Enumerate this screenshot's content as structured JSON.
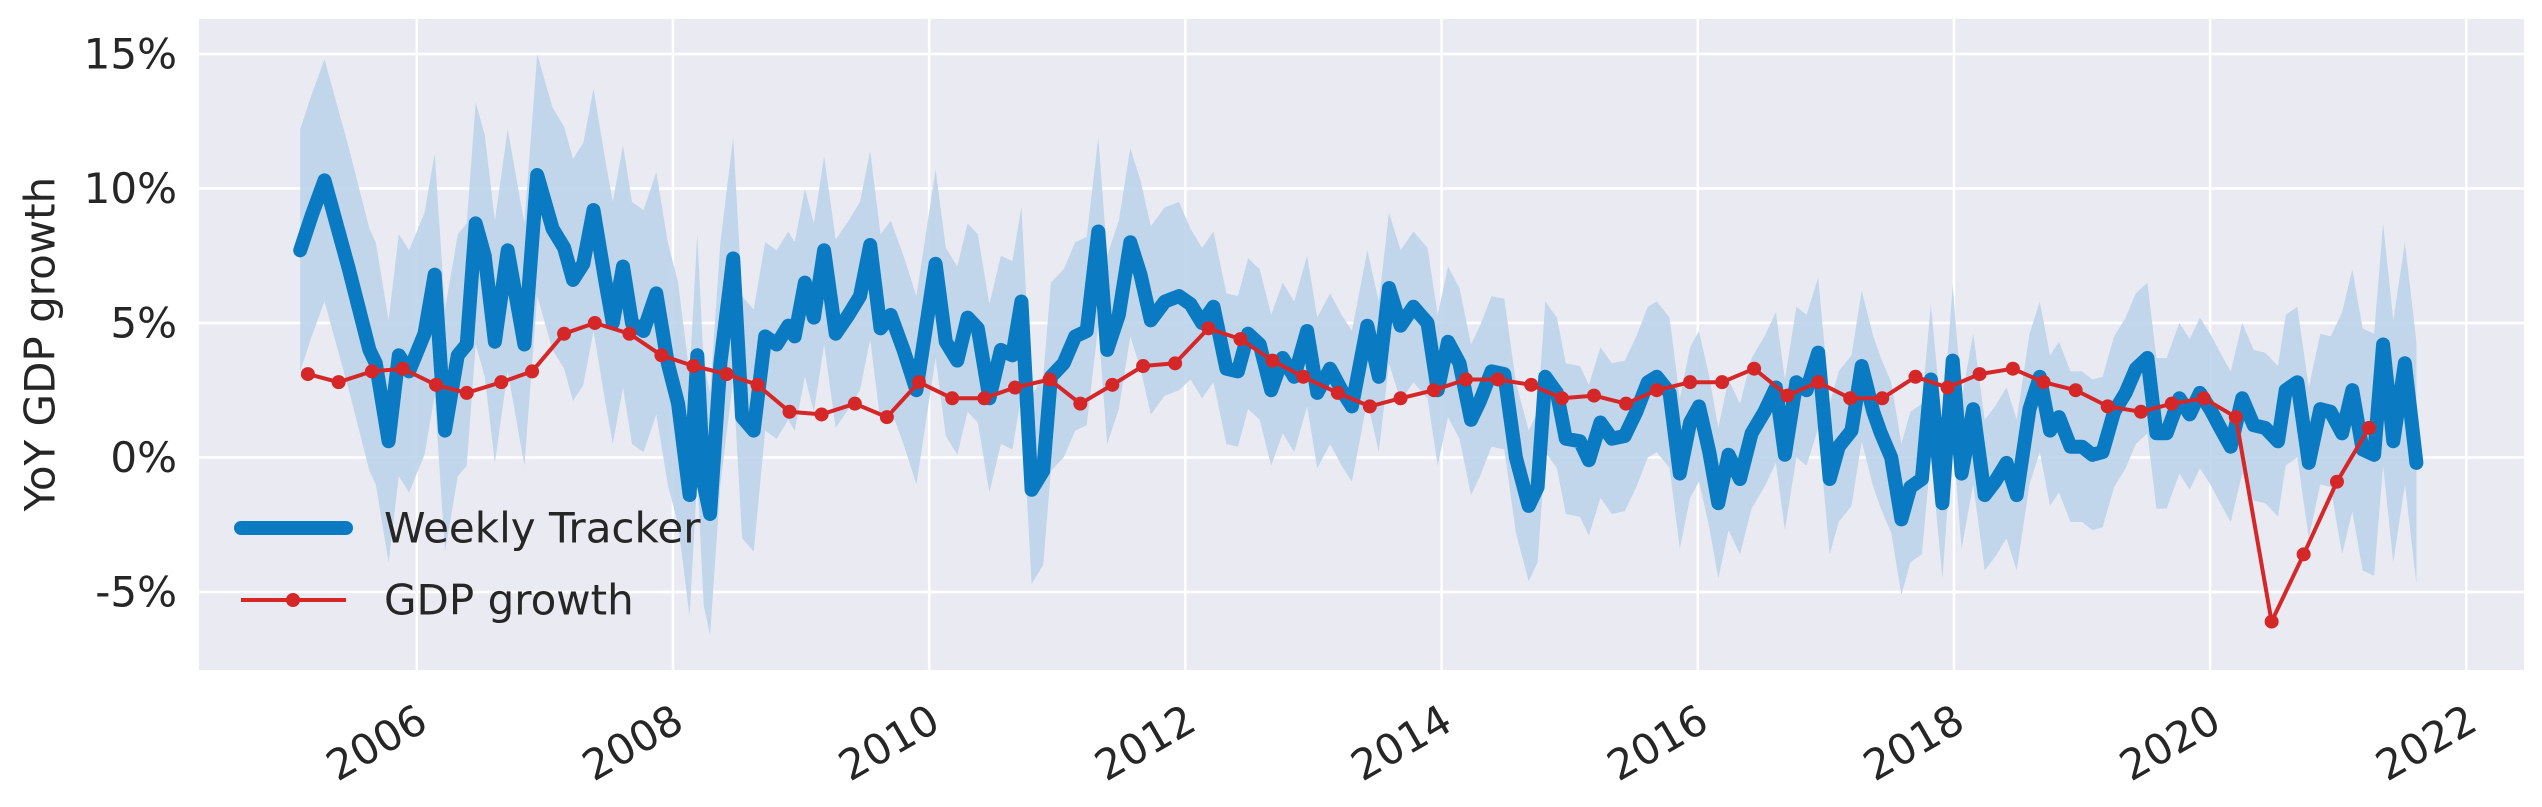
{
  "chart_data": {
    "type": "line",
    "y_label": "YoY GDP growth",
    "xlim": [
      2004.3,
      2022.45
    ],
    "xticks": [
      2006,
      2008,
      2010,
      2012,
      2014,
      2016,
      2018,
      2020,
      2022
    ],
    "ylim": [
      -7.9,
      16.3
    ],
    "yticks": [
      {
        "value": -5,
        "label": "-5%"
      },
      {
        "value": 0,
        "label": "0%"
      },
      {
        "value": 5,
        "label": "5%"
      },
      {
        "value": 10,
        "label": "10%"
      },
      {
        "value": 15,
        "label": "15%"
      }
    ],
    "grid": true,
    "legend": "lower left",
    "series": [
      {
        "name": "Weekly Tracker",
        "color": "#0a7bc2",
        "band_color": "#bcd4ea",
        "x": [
          2005.09,
          2005.18,
          2005.28,
          2005.47,
          2005.63,
          2005.68,
          2005.78,
          2005.86,
          2005.94,
          2006.06,
          2006.14,
          2006.22,
          2006.32,
          2006.39,
          2006.46,
          2006.53,
          2006.61,
          2006.71,
          2006.84,
          2006.94,
          2007.06,
          2007.15,
          2007.22,
          2007.3,
          2007.38,
          2007.47,
          2007.53,
          2007.61,
          2007.68,
          2007.77,
          2007.87,
          2007.96,
          2008.04,
          2008.13,
          2008.19,
          2008.24,
          2008.29,
          2008.37,
          2008.47,
          2008.54,
          2008.63,
          2008.72,
          2008.81,
          2008.9,
          2008.95,
          2009.03,
          2009.1,
          2009.18,
          2009.27,
          2009.37,
          2009.46,
          2009.54,
          2009.62,
          2009.7,
          2009.8,
          2009.9,
          2010.05,
          2010.13,
          2010.22,
          2010.3,
          2010.38,
          2010.47,
          2010.56,
          2010.65,
          2010.72,
          2010.8,
          2010.89,
          2010.95,
          2011.05,
          2011.14,
          2011.23,
          2011.32,
          2011.39,
          2011.48,
          2011.57,
          2011.65,
          2011.73,
          2011.84,
          2011.95,
          2012.04,
          2012.13,
          2012.22,
          2012.32,
          2012.41,
          2012.49,
          2012.58,
          2012.67,
          2012.76,
          2012.85,
          2012.95,
          2013.03,
          2013.13,
          2013.22,
          2013.3,
          2013.42,
          2013.51,
          2013.59,
          2013.68,
          2013.78,
          2013.89,
          2013.97,
          2014.05,
          2014.14,
          2014.23,
          2014.3,
          2014.39,
          2014.49,
          2014.58,
          2014.68,
          2014.75,
          2014.81,
          2014.9,
          2014.97,
          2015.08,
          2015.15,
          2015.24,
          2015.33,
          2015.43,
          2015.52,
          2015.61,
          2015.68,
          2015.78,
          2015.86,
          2015.94,
          2016.01,
          2016.09,
          2016.16,
          2016.24,
          2016.33,
          2016.42,
          2016.52,
          2016.61,
          2016.68,
          2016.77,
          2016.85,
          2016.94,
          2017.03,
          2017.1,
          2017.2,
          2017.28,
          2017.37,
          2017.43,
          2017.51,
          2017.59,
          2017.66,
          2017.75,
          2017.82,
          2017.91,
          2017.99,
          2018.06,
          2018.15,
          2018.24,
          2018.32,
          2018.41,
          2018.49,
          2018.59,
          2018.67,
          2018.75,
          2018.82,
          2018.91,
          2019.0,
          2019.08,
          2019.16,
          2019.25,
          2019.34,
          2019.42,
          2019.51,
          2019.58,
          2019.66,
          2019.76,
          2019.84,
          2019.92,
          2020.0,
          2020.09,
          2020.16,
          2020.25,
          2020.34,
          2020.43,
          2020.53,
          2020.59,
          2020.68,
          2020.77,
          2020.86,
          2020.94,
          2021.03,
          2021.11,
          2021.19,
          2021.28,
          2021.35,
          2021.43,
          2021.52,
          2021.61
        ],
        "values": [
          7.7,
          9.0,
          10.3,
          7.0,
          4.0,
          3.5,
          0.6,
          3.8,
          3.2,
          4.6,
          6.8,
          1.0,
          3.8,
          4.2,
          8.7,
          7.5,
          4.3,
          7.7,
          4.2,
          10.5,
          8.5,
          7.8,
          6.6,
          7.2,
          9.2,
          6.6,
          5.0,
          7.1,
          5.0,
          4.7,
          6.1,
          3.5,
          2.0,
          -1.4,
          3.8,
          -1.0,
          -2.1,
          3.5,
          7.4,
          1.5,
          1.0,
          4.5,
          4.2,
          4.9,
          4.5,
          6.5,
          5.2,
          7.7,
          4.6,
          5.3,
          6.0,
          7.9,
          4.8,
          5.3,
          4.0,
          2.5,
          7.2,
          4.3,
          3.6,
          5.2,
          4.8,
          2.2,
          4.0,
          3.8,
          5.8,
          -1.2,
          -0.5,
          3.0,
          3.5,
          4.5,
          4.7,
          8.4,
          4.0,
          5.3,
          8.0,
          6.8,
          5.1,
          5.8,
          6.0,
          5.7,
          5.0,
          5.6,
          3.3,
          3.2,
          4.6,
          4.2,
          2.5,
          3.7,
          3.0,
          4.7,
          2.4,
          3.3,
          2.5,
          1.9,
          4.9,
          3.0,
          6.3,
          4.9,
          5.6,
          5.0,
          2.5,
          4.3,
          3.5,
          1.4,
          2.1,
          3.2,
          3.1,
          0.0,
          -1.8,
          -1.1,
          3.0,
          2.4,
          0.7,
          0.6,
          -0.1,
          1.3,
          0.7,
          0.8,
          1.7,
          2.8,
          3.0,
          2.4,
          -0.6,
          1.3,
          1.9,
          0.2,
          -1.7,
          0.1,
          -0.8,
          0.9,
          1.7,
          2.6,
          0.1,
          2.8,
          2.5,
          3.9,
          -0.8,
          0.4,
          1.0,
          3.4,
          1.7,
          0.9,
          0.0,
          -2.3,
          -1.1,
          -0.8,
          2.9,
          -1.7,
          3.6,
          -0.6,
          1.8,
          -1.4,
          -0.9,
          -0.2,
          -1.4,
          1.8,
          3.0,
          1.0,
          1.5,
          0.4,
          0.4,
          0.1,
          0.2,
          1.7,
          2.4,
          3.3,
          3.7,
          0.9,
          0.9,
          2.2,
          1.6,
          2.4,
          1.8,
          1.0,
          0.4,
          2.2,
          1.2,
          1.1,
          0.6,
          2.5,
          2.8,
          -0.2,
          1.8,
          1.7,
          0.9,
          2.5,
          0.3,
          0.1,
          4.2,
          0.6,
          3.5,
          -0.2
        ],
        "upper": [
          12.2,
          13.5,
          14.8,
          11.5,
          8.5,
          8.0,
          5.1,
          8.3,
          7.7,
          9.1,
          11.3,
          5.5,
          8.3,
          8.7,
          13.2,
          12.0,
          8.8,
          12.2,
          8.7,
          15.0,
          13.0,
          12.3,
          11.1,
          11.7,
          13.7,
          11.1,
          9.5,
          11.6,
          9.5,
          9.2,
          10.6,
          8.0,
          6.5,
          3.1,
          8.3,
          3.5,
          2.4,
          8.0,
          11.9,
          6.0,
          5.5,
          8.0,
          7.7,
          8.4,
          8.0,
          10.0,
          8.7,
          11.2,
          8.1,
          8.8,
          9.5,
          11.4,
          8.3,
          8.8,
          7.5,
          6.0,
          10.7,
          7.8,
          7.1,
          8.7,
          8.3,
          5.7,
          7.5,
          7.3,
          9.3,
          2.3,
          3.0,
          6.5,
          7.0,
          8.0,
          8.2,
          11.9,
          7.5,
          8.8,
          11.5,
          10.3,
          8.6,
          9.3,
          9.5,
          8.5,
          7.8,
          8.4,
          6.1,
          6.0,
          7.4,
          7.0,
          5.3,
          6.5,
          5.8,
          7.5,
          5.2,
          6.1,
          5.3,
          4.7,
          7.7,
          5.8,
          9.1,
          7.7,
          8.4,
          7.8,
          5.3,
          7.1,
          6.3,
          4.2,
          4.9,
          6.0,
          5.9,
          2.8,
          1.0,
          1.7,
          5.8,
          5.2,
          3.5,
          3.4,
          2.7,
          4.1,
          3.5,
          3.6,
          4.5,
          5.6,
          5.8,
          5.2,
          2.2,
          4.1,
          4.7,
          3.0,
          1.1,
          2.9,
          2.0,
          3.7,
          4.5,
          5.4,
          2.9,
          5.6,
          5.3,
          6.7,
          2.0,
          3.2,
          3.8,
          6.2,
          4.5,
          3.7,
          2.8,
          0.5,
          1.7,
          2.0,
          5.7,
          1.1,
          6.4,
          2.2,
          4.6,
          1.4,
          1.9,
          2.6,
          1.4,
          4.6,
          5.8,
          3.8,
          4.3,
          3.2,
          3.2,
          2.9,
          3.0,
          4.5,
          5.2,
          6.1,
          6.5,
          3.7,
          3.7,
          5.0,
          4.4,
          5.2,
          4.6,
          3.8,
          3.2,
          5.0,
          4.0,
          3.9,
          3.4,
          5.3,
          5.6,
          2.6,
          4.6,
          4.5,
          5.4,
          7.0,
          4.8,
          4.6,
          8.7,
          5.1,
          8.0,
          4.3
        ],
        "lower": [
          3.2,
          4.5,
          5.8,
          2.5,
          -0.5,
          -1.0,
          -3.9,
          -0.7,
          -1.3,
          0.1,
          2.3,
          -3.5,
          -0.7,
          -0.3,
          4.2,
          3.0,
          -0.2,
          3.2,
          -0.3,
          6.0,
          4.0,
          3.3,
          2.1,
          2.7,
          4.7,
          2.1,
          0.5,
          2.6,
          0.5,
          0.2,
          1.6,
          -1.0,
          -2.5,
          -5.9,
          -0.7,
          -5.5,
          -6.6,
          -1.0,
          2.9,
          -3.0,
          -3.5,
          1.0,
          0.7,
          1.4,
          1.0,
          3.0,
          1.7,
          4.2,
          1.1,
          1.8,
          2.5,
          4.4,
          1.3,
          1.8,
          0.5,
          -1.0,
          3.7,
          0.8,
          0.1,
          1.7,
          1.3,
          -1.3,
          0.5,
          0.3,
          2.3,
          -4.7,
          -4.0,
          -0.5,
          0.0,
          1.0,
          1.2,
          4.9,
          0.5,
          1.8,
          4.5,
          3.3,
          1.6,
          2.3,
          2.5,
          2.9,
          2.2,
          2.8,
          0.5,
          0.4,
          1.8,
          1.4,
          -0.3,
          0.9,
          0.2,
          1.9,
          -0.4,
          0.5,
          -0.3,
          -0.9,
          2.1,
          0.2,
          3.5,
          2.1,
          2.8,
          2.2,
          -0.3,
          1.5,
          0.7,
          -1.4,
          -0.7,
          0.4,
          0.3,
          -2.8,
          -4.6,
          -3.9,
          0.2,
          -0.4,
          -2.1,
          -2.2,
          -2.9,
          -1.5,
          -2.1,
          -2.0,
          -1.1,
          0.0,
          0.2,
          -0.4,
          -3.4,
          -1.5,
          -0.9,
          -2.6,
          -4.5,
          -2.7,
          -3.6,
          -1.9,
          -1.1,
          -0.2,
          -2.7,
          0.0,
          -0.3,
          1.1,
          -3.6,
          -2.4,
          -1.8,
          0.6,
          -1.1,
          -1.9,
          -2.8,
          -5.1,
          -3.9,
          -3.6,
          0.1,
          -4.5,
          0.8,
          -3.4,
          -1.0,
          -4.2,
          -3.7,
          -3.0,
          -4.2,
          -1.0,
          0.2,
          -1.8,
          -1.3,
          -2.4,
          -2.4,
          -2.7,
          -2.6,
          -1.1,
          -0.4,
          0.5,
          0.9,
          -1.9,
          -1.9,
          -0.6,
          -1.2,
          -0.4,
          -1.0,
          -1.8,
          -2.4,
          -0.6,
          -1.6,
          -1.7,
          -2.2,
          -0.3,
          0.0,
          -3.0,
          -1.0,
          -1.1,
          -3.6,
          -2.0,
          -4.2,
          -4.4,
          -0.3,
          -3.9,
          -1.0,
          -4.7
        ]
      },
      {
        "name": "GDP growth",
        "color": "#d62728",
        "x": [
          2005.15,
          2005.39,
          2005.65,
          2005.89,
          2006.15,
          2006.39,
          2006.66,
          2006.9,
          2007.15,
          2007.39,
          2007.66,
          2007.91,
          2008.16,
          2008.42,
          2008.66,
          2008.91,
          2009.16,
          2009.42,
          2009.67,
          2009.92,
          2010.18,
          2010.43,
          2010.67,
          2010.94,
          2011.18,
          2011.43,
          2011.67,
          2011.92,
          2012.18,
          2012.43,
          2012.68,
          2012.92,
          2013.19,
          2013.44,
          2013.68,
          2013.94,
          2014.19,
          2014.44,
          2014.7,
          2014.94,
          2015.19,
          2015.44,
          2015.68,
          2015.94,
          2016.19,
          2016.44,
          2016.7,
          2016.94,
          2017.19,
          2017.44,
          2017.7,
          2017.95,
          2018.2,
          2018.46,
          2018.7,
          2018.95,
          2019.2,
          2019.46,
          2019.7,
          2019.95,
          2020.2,
          2020.48,
          2020.73,
          2020.99,
          2021.24
        ],
        "values": [
          3.1,
          2.8,
          3.2,
          3.3,
          2.7,
          2.4,
          2.8,
          3.2,
          4.6,
          5.0,
          4.6,
          3.8,
          3.4,
          3.1,
          2.7,
          1.7,
          1.6,
          2.0,
          1.5,
          2.8,
          2.2,
          2.2,
          2.6,
          2.9,
          2.0,
          2.7,
          3.4,
          3.5,
          4.8,
          4.4,
          3.6,
          3.0,
          2.4,
          1.9,
          2.2,
          2.5,
          2.9,
          2.9,
          2.7,
          2.2,
          2.3,
          2.0,
          2.5,
          2.8,
          2.8,
          3.3,
          2.3,
          2.8,
          2.2,
          2.2,
          3.0,
          2.6,
          3.1,
          3.3,
          2.8,
          2.5,
          1.9,
          1.7,
          2.0,
          2.2,
          1.5,
          -6.1,
          -3.6,
          -0.9,
          1.1
        ]
      }
    ]
  }
}
